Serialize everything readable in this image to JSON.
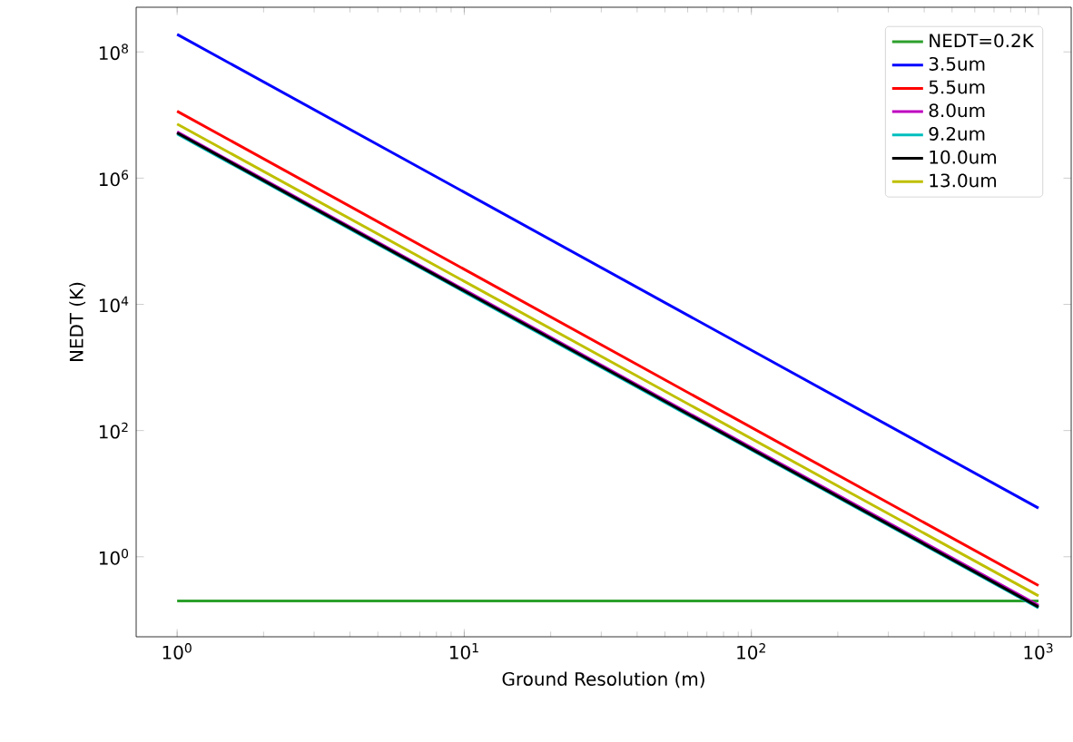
{
  "chart_data": {
    "type": "line",
    "xlabel": "Ground Resolution (m)",
    "ylabel": "NEDT (K)",
    "x": [
      1,
      1000
    ],
    "series": [
      {
        "name": "NEDT=0.2K",
        "color": "#2ca02c",
        "values": [
          0.2,
          0.2
        ]
      },
      {
        "name": "3.5um",
        "color": "#0000ff",
        "values": [
          190000000,
          5.9
        ]
      },
      {
        "name": "5.5um",
        "color": "#ff0000",
        "values": [
          11500000,
          0.35
        ]
      },
      {
        "name": "8.0um",
        "color": "#bf00bf",
        "values": [
          5400000,
          0.17
        ]
      },
      {
        "name": "9.2um",
        "color": "#00bfbf",
        "values": [
          5000000,
          0.155
        ]
      },
      {
        "name": "10.0um",
        "color": "#000000",
        "values": [
          5200000,
          0.16
        ]
      },
      {
        "name": "13.0um",
        "color": "#bfbf00",
        "values": [
          7200000,
          0.24
        ]
      }
    ],
    "log": "xy",
    "xlim": [
      0.72,
      1300
    ],
    "ylim": [
      0.054,
      510000000
    ],
    "xticks": [
      {
        "value": 1,
        "label": "10$^{0}$"
      },
      {
        "value": 10,
        "label": "10$^{1}$"
      },
      {
        "value": 100,
        "label": "10$^{2}$"
      },
      {
        "value": 1000,
        "label": "10$^{3}$"
      }
    ],
    "yticks": [
      {
        "value": 1,
        "label": "10$^{0}$"
      },
      {
        "value": 100,
        "label": "10$^{2}$"
      },
      {
        "value": 10000,
        "label": "10$^{4}$"
      },
      {
        "value": 1000000,
        "label": "10$^{6}$"
      },
      {
        "value": 100000000,
        "label": "10$^{8}$"
      }
    ],
    "legend": "top right",
    "grid": false,
    "marker": "none",
    "line_style": "solid"
  }
}
